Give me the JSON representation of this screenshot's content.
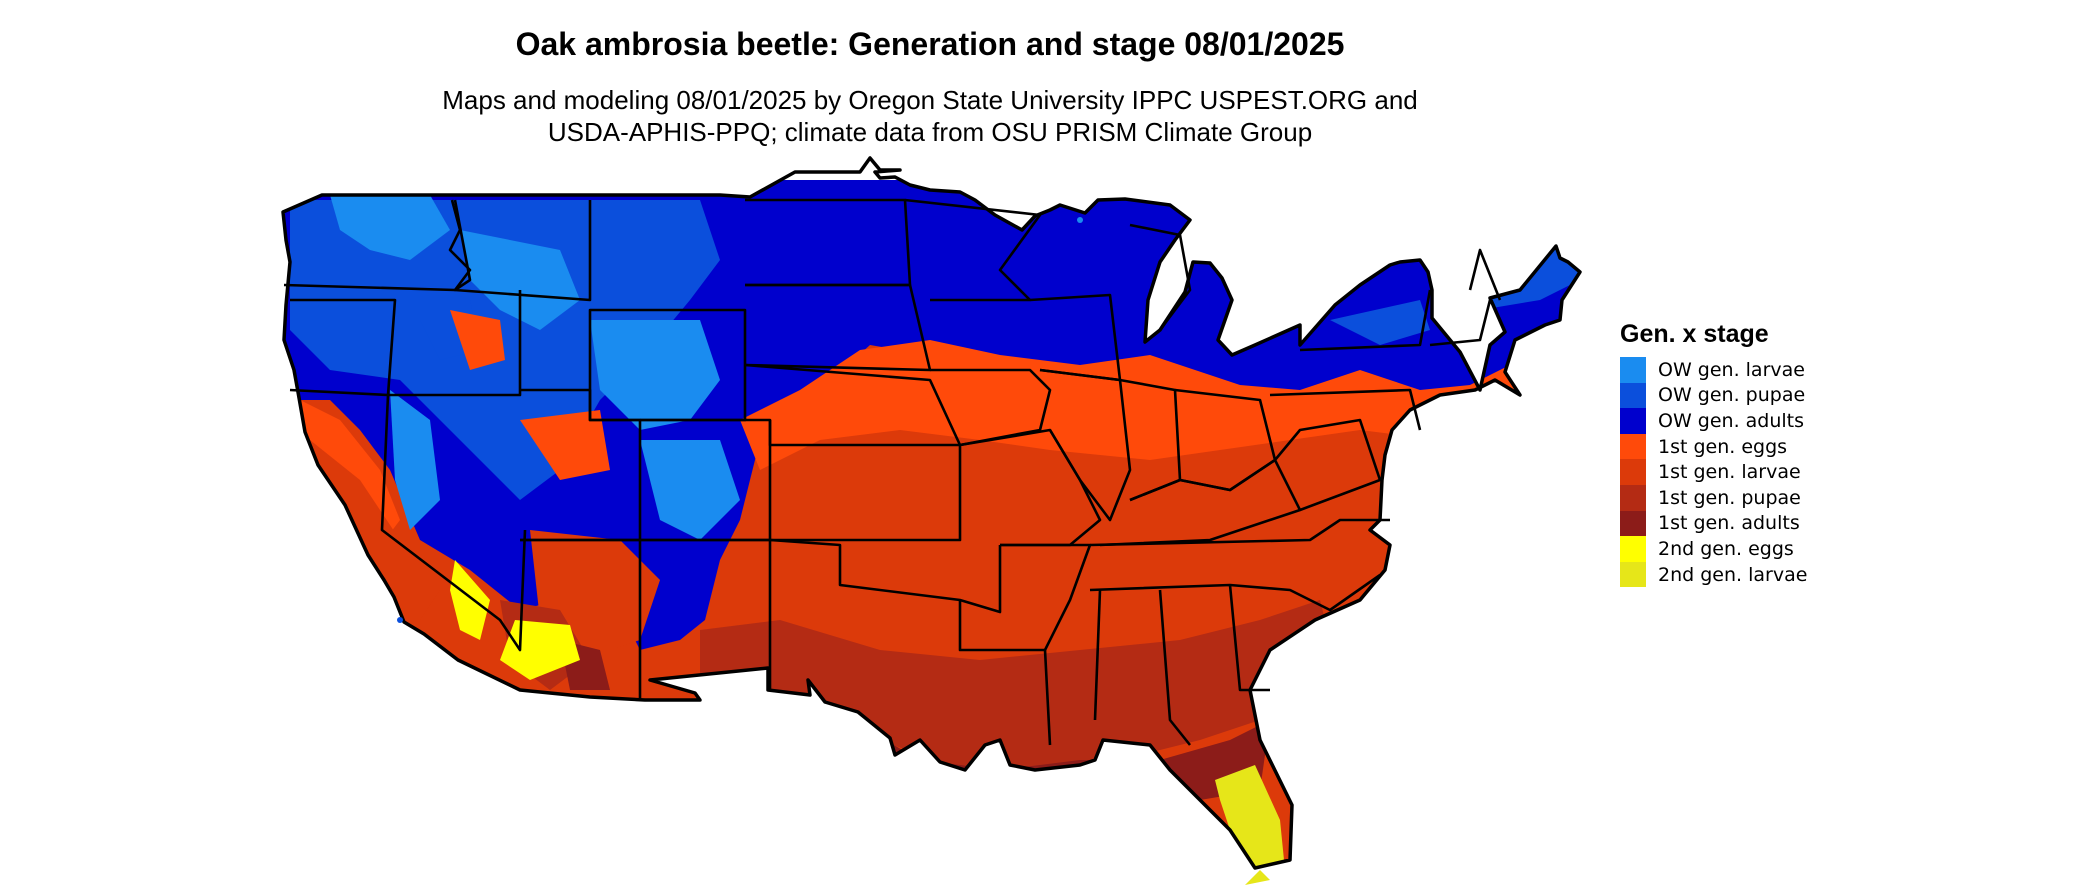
{
  "title": "Oak ambrosia beetle: Generation and stage 08/01/2025",
  "subtitle_line1": "Maps and modeling 08/01/2025 by Oregon State University IPPC USPEST.ORG and",
  "subtitle_line2": "USDA-APHIS-PPQ; climate data from OSU PRISM Climate Group",
  "legend": {
    "title": "Gen. x stage",
    "items": [
      {
        "label": "OW gen. larvae",
        "color": "#1a8cf0"
      },
      {
        "label": "OW gen. pupae",
        "color": "#0b4fdc"
      },
      {
        "label": "OW gen. adults",
        "color": "#0000cd"
      },
      {
        "label": "1st gen. eggs",
        "color": "#ff4a0a"
      },
      {
        "label": "1st gen. larvae",
        "color": "#dc3a0a"
      },
      {
        "label": "1st gen. pupae",
        "color": "#b42b14"
      },
      {
        "label": "1st gen. adults",
        "color": "#8c1c19"
      },
      {
        "label": "2nd gen. eggs",
        "color": "#ffff00"
      },
      {
        "label": "2nd gen. larvae",
        "color": "#e6e619"
      }
    ]
  }
}
